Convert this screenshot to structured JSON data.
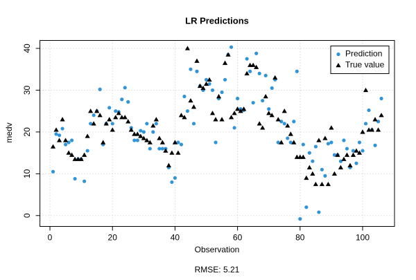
{
  "chart_data": {
    "type": "scatter",
    "title": "LR Predictions",
    "subtitle": "RMSE: 5.21",
    "x_label": "Observation",
    "y_label": "medv",
    "x": [
      1,
      2,
      3,
      4,
      5,
      6,
      7,
      8,
      9,
      10,
      11,
      12,
      13,
      14,
      15,
      16,
      17,
      18,
      19,
      20,
      21,
      22,
      23,
      24,
      25,
      26,
      27,
      28,
      29,
      30,
      31,
      32,
      33,
      34,
      35,
      36,
      37,
      38,
      39,
      40,
      41,
      42,
      43,
      44,
      45,
      46,
      47,
      48,
      49,
      50,
      51,
      52,
      53,
      54,
      55,
      56,
      57,
      58,
      59,
      60,
      61,
      62,
      63,
      64,
      65,
      66,
      67,
      68,
      69,
      70,
      71,
      72,
      73,
      74,
      75,
      76,
      77,
      78,
      79,
      80,
      81,
      82,
      83,
      84,
      85,
      86,
      87,
      88,
      89,
      90,
      91,
      92,
      93,
      94,
      95,
      96,
      97,
      98,
      99,
      100,
      101,
      102,
      103,
      104,
      105,
      106
    ],
    "series": [
      {
        "name": "Prediction",
        "color": "#2f95d8",
        "marker": "circle",
        "values": [
          10.5,
          19.5,
          19.2,
          20.8,
          17,
          17.5,
          18,
          8.8,
          13.5,
          13.5,
          8.2,
          15.5,
          22,
          24,
          25,
          30.2,
          17,
          22,
          25.8,
          22,
          25,
          24.8,
          27.8,
          30.6,
          27.2,
          21,
          18,
          18,
          20.3,
          20,
          22,
          16,
          20,
          22,
          16,
          16,
          16,
          11.5,
          8,
          9,
          17.5,
          17,
          28.5,
          25,
          35,
          22,
          34.5,
          31,
          30,
          32.5,
          31.5,
          30,
          17.5,
          28,
          29.5,
          32.5,
          38.5,
          40.3,
          21,
          28,
          25.5,
          25.2,
          37.5,
          34.5,
          27,
          38.8,
          34,
          27.5,
          33.5,
          25.5,
          30.5,
          32.5,
          17.5,
          22.5,
          22,
          18.5,
          17.5,
          22.5,
          34.5,
          -0.8,
          17,
          2,
          15,
          13,
          16.5,
          0.8,
          11,
          9.5,
          17.2,
          17.5,
          14.5,
          14.5,
          13,
          18,
          16,
          11.5,
          15.5,
          12.5,
          17.5,
          15.5,
          22,
          25.2,
          20.5,
          16.8,
          22.5,
          28
        ]
      },
      {
        "name": "True value",
        "color": "#000000",
        "marker": "triangle",
        "values": [
          16.5,
          20.5,
          18,
          23,
          18,
          15,
          14.5,
          13.5,
          13.5,
          13.5,
          14.5,
          19,
          25,
          22,
          25,
          24,
          17.5,
          22,
          23,
          20.5,
          23.5,
          24.5,
          23.5,
          23.5,
          22.5,
          20.5,
          19.5,
          19.5,
          19,
          18.5,
          18,
          17.5,
          21.5,
          23,
          18.5,
          17.5,
          15.5,
          12,
          15,
          17.5,
          15,
          24,
          23.5,
          40,
          27.5,
          26,
          37,
          31,
          30.5,
          31.5,
          32.5,
          24.5,
          23,
          28.5,
          23,
          36.5,
          38.5,
          23.5,
          24.5,
          25.5,
          25,
          25.5,
          34,
          36,
          36,
          35.5,
          22,
          21,
          28.5,
          24.5,
          24,
          33,
          23,
          17.5,
          25,
          21.5,
          19.5,
          17.5,
          14,
          14,
          14,
          9,
          11.5,
          10,
          7.5,
          18,
          7.5,
          18.5,
          7.5,
          21,
          10,
          14.5,
          11.5,
          13.5,
          14.5,
          12,
          14.5,
          15.5,
          15,
          20,
          30,
          20.5,
          20.5,
          23,
          20.5,
          24
        ]
      }
    ],
    "xlim": [
      -3.2,
      110.2
    ],
    "ylim": [
      -2.6,
      41.9
    ],
    "xticks": [
      0,
      20,
      40,
      60,
      80,
      100
    ],
    "yticks": [
      0,
      10,
      20,
      30,
      40
    ],
    "grid": true,
    "legend": "topright"
  }
}
